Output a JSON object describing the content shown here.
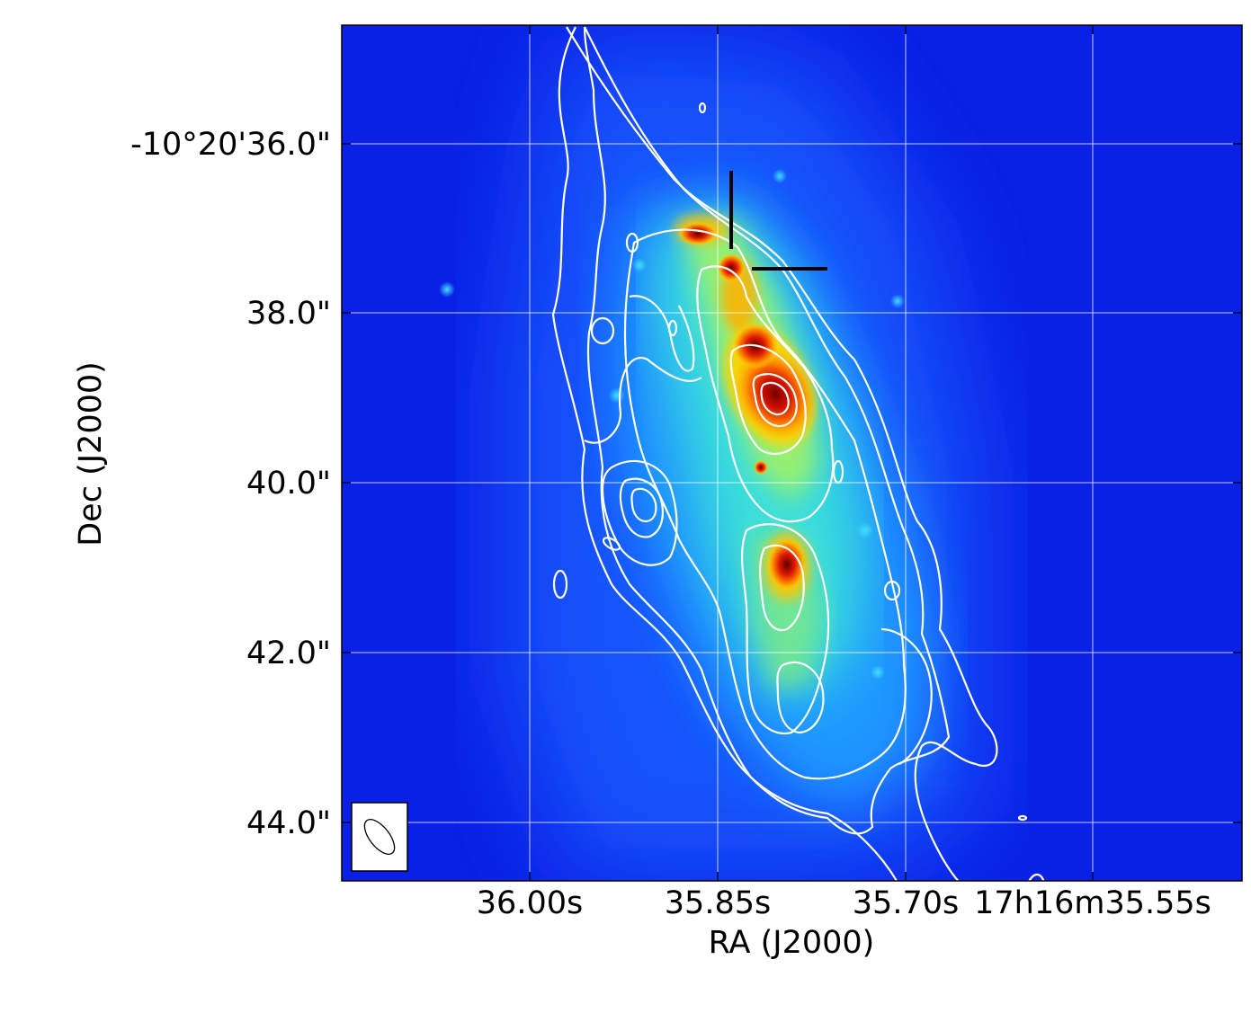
{
  "chart_data": {
    "type": "heatmap",
    "title": "",
    "xlabel": "RA (J2000)",
    "ylabel": "Dec (J2000)",
    "x_ticks": [
      "36.00s",
      "35.85s",
      "35.70s",
      "17h16m35.55s"
    ],
    "y_ticks": [
      "-10°20'36.0\"",
      "38.0\"",
      "40.0\"",
      "42.0\"",
      "44.0\""
    ],
    "x_tick_values_s": [
      36.0,
      35.85,
      35.7,
      35.55
    ],
    "y_tick_values_arcsec": [
      36.0,
      38.0,
      40.0,
      42.0,
      44.0
    ],
    "xlim_s": [
      36.15,
      35.43
    ],
    "ylim_arcsec": [
      34.6,
      44.7
    ],
    "grid": true,
    "colormap": "jet",
    "overlay": "white contours",
    "beam_ellipse": "bottom-left",
    "marker": "black cross-hair at RA 35.835s, Dec 37.5\"",
    "contour_levels": 5,
    "bright_peaks_arcsec": [
      {
        "ra_s": 35.805,
        "dec_arcsec": 39.0,
        "label": "main peak"
      },
      {
        "ra_s": 35.8,
        "dec_arcsec": 40.95
      },
      {
        "ra_s": 35.845,
        "dec_arcsec": 37.5
      },
      {
        "ra_s": 35.878,
        "dec_arcsec": 37.1
      }
    ]
  },
  "colors": {
    "background_field": "#0a3cf0",
    "contour": "#ffffff",
    "marker": "#000000",
    "grid": "#ffffff"
  }
}
